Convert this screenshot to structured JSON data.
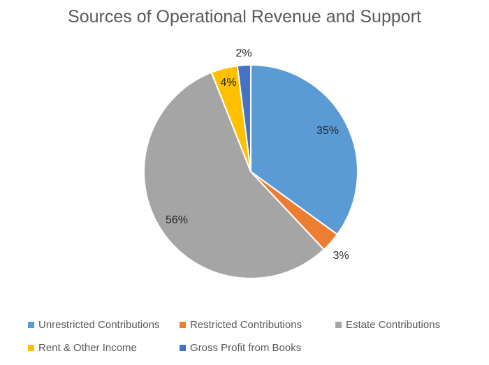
{
  "chart_data": {
    "type": "pie",
    "title": "Sources of Operational Revenue and Support",
    "categories": [
      "Unrestricted Contributions",
      "Restricted Contributions",
      "Estate Contributions",
      "Rent & Other Income",
      "Gross Profit from Books"
    ],
    "values": [
      35,
      3,
      56,
      4,
      2
    ],
    "data_labels": [
      "35%",
      "3%",
      "56%",
      "4%",
      "2%"
    ],
    "colors": [
      "#5B9BD5",
      "#ED7D31",
      "#A5A5A5",
      "#FFC000",
      "#4472C4"
    ],
    "legend_position": "bottom"
  }
}
